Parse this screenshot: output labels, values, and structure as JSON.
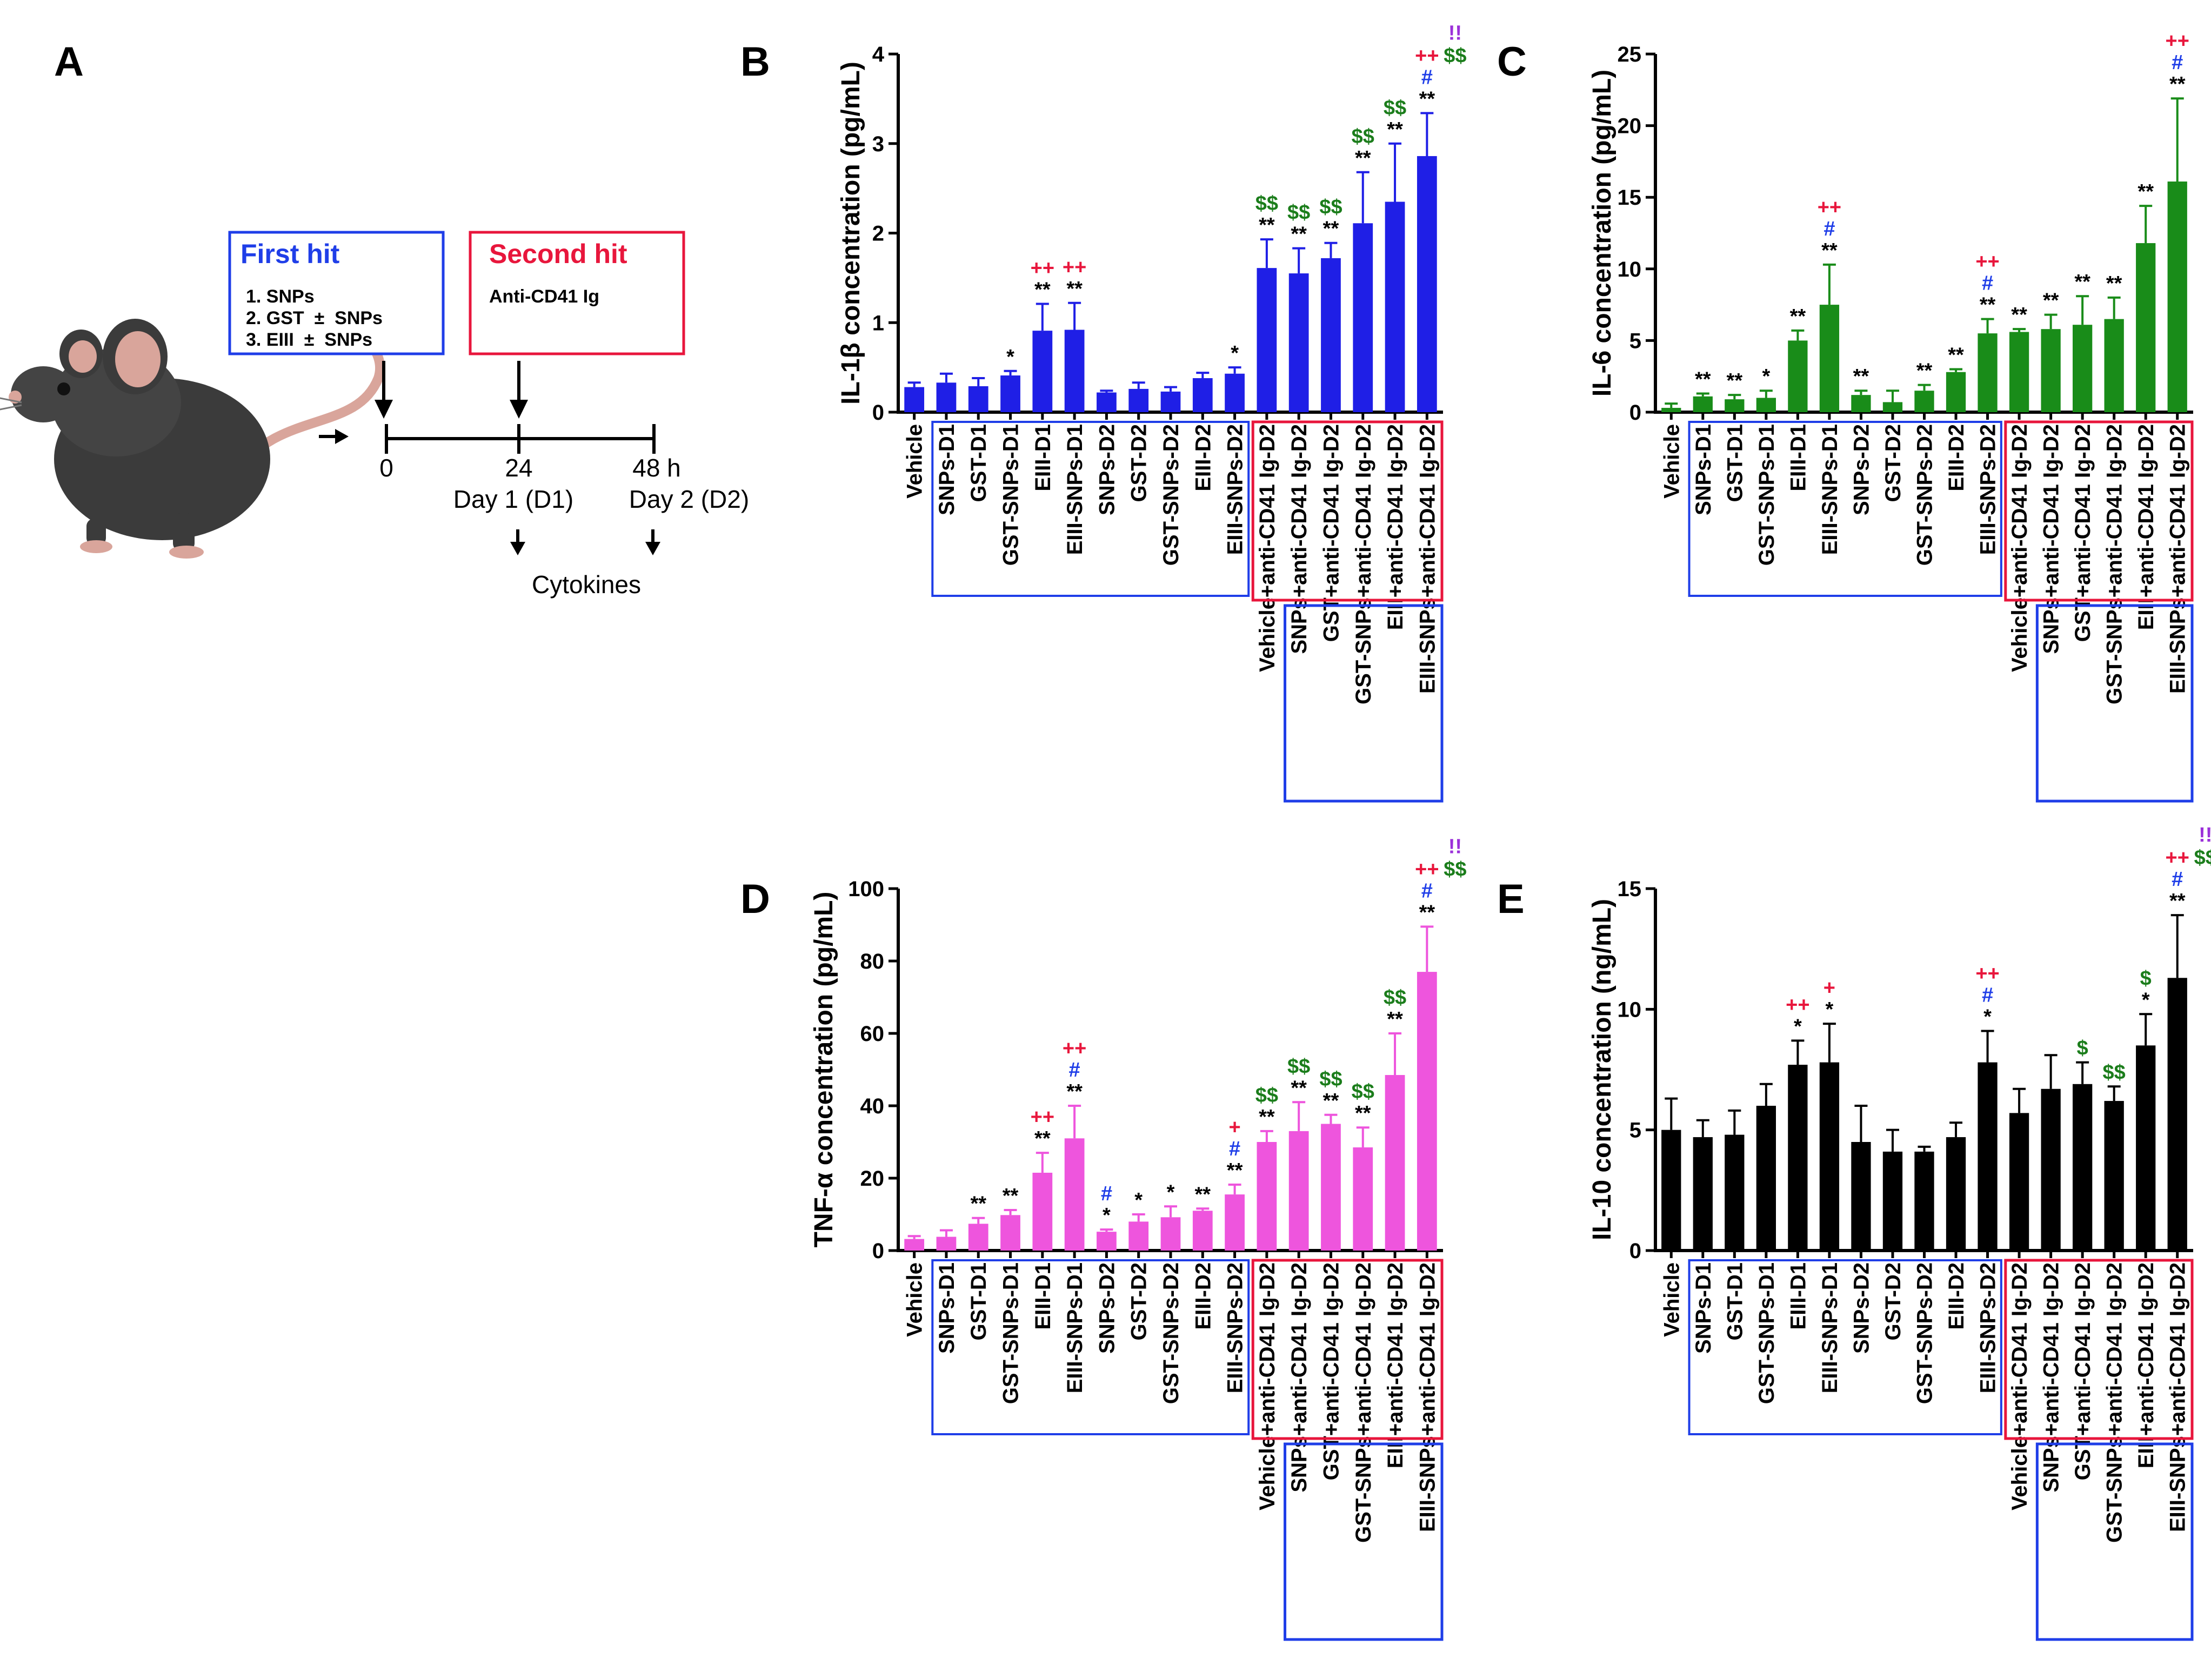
{
  "colors": {
    "blue_group": "#1f3ee8",
    "red_group": "#e8163c",
    "plus_sig": "#e8163c",
    "hash_sig": "#1f3ee8",
    "dollar_sig": "#1b7d1b",
    "bang_sig": "#9b30d9",
    "star_sig": "#000000"
  },
  "panel_a": {
    "label": "A",
    "first_hit_title": "First hit",
    "first_hit_items": [
      "1. SNPs",
      "2. GST  ±  SNPs",
      "3. EIII  ±  SNPs"
    ],
    "second_hit_title": "Second hit",
    "second_hit_items": [
      "Anti-CD41 Ig"
    ],
    "timeline": {
      "ticks": [
        "0",
        "24",
        "48 h"
      ],
      "day_labels": [
        "Day 1 (D1)",
        "Day 2 (D2)"
      ],
      "readout": "Cytokines"
    }
  },
  "chart_data": [
    {
      "panel": "B",
      "type": "bar",
      "ylabel": "IL-1β concentration (pg/mL)",
      "ylim": [
        0,
        4
      ],
      "yticks": [
        0,
        1,
        2,
        3,
        4
      ],
      "bar_color": "#1f1fe6",
      "categories": [
        "Vehicle",
        "SNPs-D1",
        "GST-D1",
        "GST-SNPs-D1",
        "EIII-D1",
        "EIII-SNPs-D1",
        "SNPs-D2",
        "GST-D2",
        "GST-SNPs-D2",
        "EIII-D2",
        "EIII-SNPs-D2",
        "Vehicle+anti-CD41 Ig-D2",
        "SNPs+anti-CD41 Ig-D2",
        "GST+anti-CD41 Ig-D2",
        "GST-SNPs+anti-CD41 Ig-D2",
        "EIII+anti-CD41 Ig-D2",
        "EIII-SNPs+anti-CD41 Ig-D2"
      ],
      "values": [
        0.28,
        0.33,
        0.29,
        0.41,
        0.91,
        0.92,
        0.22,
        0.26,
        0.23,
        0.38,
        0.43,
        1.61,
        1.55,
        1.72,
        2.11,
        2.35,
        2.86
      ],
      "errors": [
        0.05,
        0.1,
        0.09,
        0.05,
        0.3,
        0.3,
        0.02,
        0.07,
        0.05,
        0.06,
        0.07,
        0.32,
        0.28,
        0.17,
        0.57,
        0.65,
        0.48
      ],
      "annotations": [
        [],
        [],
        [],
        [
          "*"
        ],
        [
          "**",
          "++"
        ],
        [
          "**",
          "++"
        ],
        [],
        [],
        [],
        [],
        [
          "*"
        ],
        [
          "**",
          "$$"
        ],
        [
          "**",
          "$$"
        ],
        [
          "**",
          "$$"
        ],
        [
          "**",
          "$$"
        ],
        [
          "**",
          "$$"
        ],
        [
          "**",
          "#",
          "++",
          "$$",
          "!!"
        ]
      ]
    },
    {
      "panel": "C",
      "type": "bar",
      "ylabel": "IL-6 concentration (pg/mL)",
      "ylim": [
        0,
        25
      ],
      "yticks": [
        0,
        5,
        10,
        15,
        20,
        25
      ],
      "bar_color": "#198c19",
      "categories": [
        "Vehicle",
        "SNPs-D1",
        "GST-D1",
        "GST-SNPs-D1",
        "EIII-D1",
        "EIII-SNPs-D1",
        "SNPs-D2",
        "GST-D2",
        "GST-SNPs-D2",
        "EIII-D2",
        "EIII-SNPs-D2",
        "Vehicle+anti-CD41 Ig-D2",
        "SNPs+anti-CD41 Ig-D2",
        "GST+anti-CD41 Ig-D2",
        "GST-SNPs+anti-CD41 Ig-D2",
        "EIII+anti-CD41 Ig-D2",
        "EIII-SNPs+anti-CD41 Ig-D2"
      ],
      "values": [
        0.3,
        1.1,
        0.9,
        1.0,
        5.0,
        7.5,
        1.2,
        0.7,
        1.5,
        2.8,
        5.5,
        5.6,
        5.8,
        6.1,
        6.5,
        11.8,
        16.1
      ],
      "errors": [
        0.3,
        0.2,
        0.3,
        0.5,
        0.7,
        2.8,
        0.3,
        0.8,
        0.4,
        0.2,
        1.0,
        0.2,
        1.0,
        2.0,
        1.5,
        2.6,
        5.8
      ],
      "annotations": [
        [],
        [
          "**"
        ],
        [
          "**"
        ],
        [
          "*"
        ],
        [
          "**"
        ],
        [
          "**",
          "#",
          "++"
        ],
        [
          "**"
        ],
        [],
        [
          "**"
        ],
        [
          "**"
        ],
        [
          "**",
          "#",
          "++"
        ],
        [
          "**"
        ],
        [
          "**"
        ],
        [
          "**"
        ],
        [
          "**"
        ],
        [
          "**"
        ],
        [
          "**",
          "#",
          "++"
        ]
      ]
    },
    {
      "panel": "D",
      "type": "bar",
      "ylabel": "TNF-α concentration (pg/mL)",
      "ylim": [
        0,
        100
      ],
      "yticks": [
        0,
        20,
        40,
        60,
        80,
        100
      ],
      "bar_color": "#ee55dd",
      "categories": [
        "Vehicle",
        "SNPs-D1",
        "GST-D1",
        "GST-SNPs-D1",
        "EIII-D1",
        "EIII-SNPs-D1",
        "SNPs-D2",
        "GST-D2",
        "GST-SNPs-D2",
        "EIII-D2",
        "EIII-SNPs-D2",
        "Vehicle+anti-CD41 Ig-D2",
        "SNPs+anti-CD41 Ig-D2",
        "GST+anti-CD41 Ig-D2",
        "GST-SNPs+anti-CD41 Ig-D2",
        "EIII+anti-CD41 Ig-D2",
        "EIII-SNPs+anti-CD41 Ig-D2"
      ],
      "values": [
        3.2,
        3.8,
        7.4,
        9.8,
        21.5,
        31.0,
        5.2,
        8.0,
        9.2,
        11.0,
        15.5,
        30.0,
        33.0,
        35.0,
        28.5,
        48.5,
        77.0
      ],
      "errors": [
        0.8,
        1.8,
        1.6,
        1.4,
        5.5,
        9.0,
        0.6,
        2.0,
        3.0,
        0.6,
        2.7,
        3.0,
        8.0,
        2.5,
        5.5,
        11.5,
        12.5
      ],
      "annotations": [
        [],
        [],
        [
          "**"
        ],
        [
          "**"
        ],
        [
          "**",
          "++"
        ],
        [
          "**",
          "#",
          "++"
        ],
        [
          "*",
          "#"
        ],
        [
          "*"
        ],
        [
          "*"
        ],
        [
          "**"
        ],
        [
          "**",
          "#",
          "+"
        ],
        [
          "**",
          "$$"
        ],
        [
          "**",
          "$$"
        ],
        [
          "**",
          "$$"
        ],
        [
          "**",
          "$$"
        ],
        [
          "**",
          "$$"
        ],
        [
          "**",
          "#",
          "++",
          "$$",
          "!!"
        ]
      ]
    },
    {
      "panel": "E",
      "type": "bar",
      "ylabel": "IL-10 concentration (ng/mL)",
      "ylim": [
        0,
        15
      ],
      "yticks": [
        0,
        5,
        10,
        15
      ],
      "bar_color": "#000000",
      "categories": [
        "Vehicle",
        "SNPs-D1",
        "GST-D1",
        "GST-SNPs-D1",
        "EIII-D1",
        "EIII-SNPs-D1",
        "SNPs-D2",
        "GST-D2",
        "GST-SNPs-D2",
        "EIII-D2",
        "EIII-SNPs-D2",
        "Vehicle+anti-CD41 Ig-D2",
        "SNPs+anti-CD41 Ig-D2",
        "GST+anti-CD41 Ig-D2",
        "GST-SNPs+anti-CD41 Ig-D2",
        "EIII+anti-CD41 Ig-D2",
        "EIII-SNPs+anti-CD41 Ig-D2"
      ],
      "values": [
        5.0,
        4.7,
        4.8,
        6.0,
        7.7,
        7.8,
        4.5,
        4.1,
        4.1,
        4.7,
        7.8,
        5.7,
        6.7,
        6.9,
        6.2,
        8.5,
        11.3
      ],
      "errors": [
        1.3,
        0.7,
        1.0,
        0.9,
        1.0,
        1.6,
        1.5,
        0.9,
        0.2,
        0.6,
        1.3,
        1.0,
        1.4,
        0.9,
        0.6,
        1.3,
        2.6
      ],
      "annotations": [
        [],
        [],
        [],
        [],
        [
          "*",
          "++"
        ],
        [
          "*",
          "+"
        ],
        [],
        [],
        [],
        [],
        [
          "*",
          "#",
          "++"
        ],
        [],
        [],
        [
          "$"
        ],
        [
          "$$"
        ],
        [
          "*",
          "$"
        ],
        [
          "**",
          "#",
          "++",
          "$$",
          "!!"
        ]
      ]
    }
  ]
}
